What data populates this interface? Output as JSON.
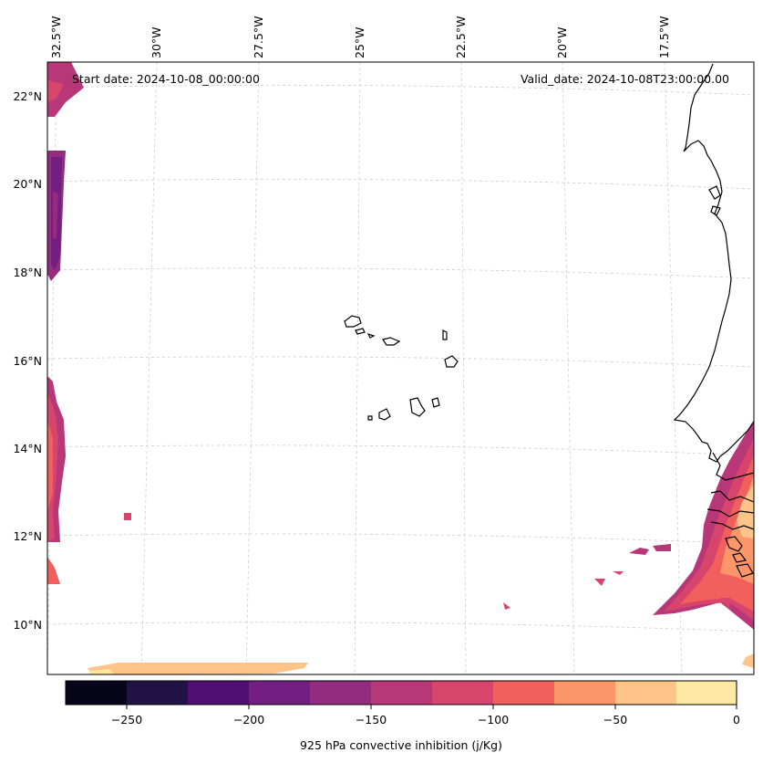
{
  "map": {
    "start_date_label": "Start date: 2024-10-08_00:00:00",
    "valid_date_label": "Valid_date: 2024-10-08T23:00:00.00",
    "lon_labels": [
      "32.5°W",
      "30°W",
      "27.5°W",
      "25°W",
      "22.5°W",
      "20°W",
      "17.5°W"
    ],
    "lat_labels": [
      "22°N",
      "20°N",
      "18°N",
      "16°N",
      "14°N",
      "12°N",
      "10°N"
    ],
    "region": "Cape Verde / West African coast"
  },
  "colorbar": {
    "label": "925 hPa convective inhibition (j/Kg)",
    "ticks": [
      "−250",
      "−200",
      "−150",
      "−100",
      "−50",
      "0"
    ],
    "levels": [
      -275,
      -250,
      -225,
      -200,
      -175,
      -150,
      -125,
      -100,
      -75,
      -50,
      -25,
      0
    ],
    "colors": [
      "#06051a",
      "#211445",
      "#4f0e72",
      "#721f81",
      "#942c80",
      "#b73779",
      "#d8456c",
      "#f1605d",
      "#fd9668",
      "#fec488",
      "#fde8a4"
    ]
  },
  "colors": {
    "coastline": "#000000",
    "gridline": "#cccccc"
  }
}
